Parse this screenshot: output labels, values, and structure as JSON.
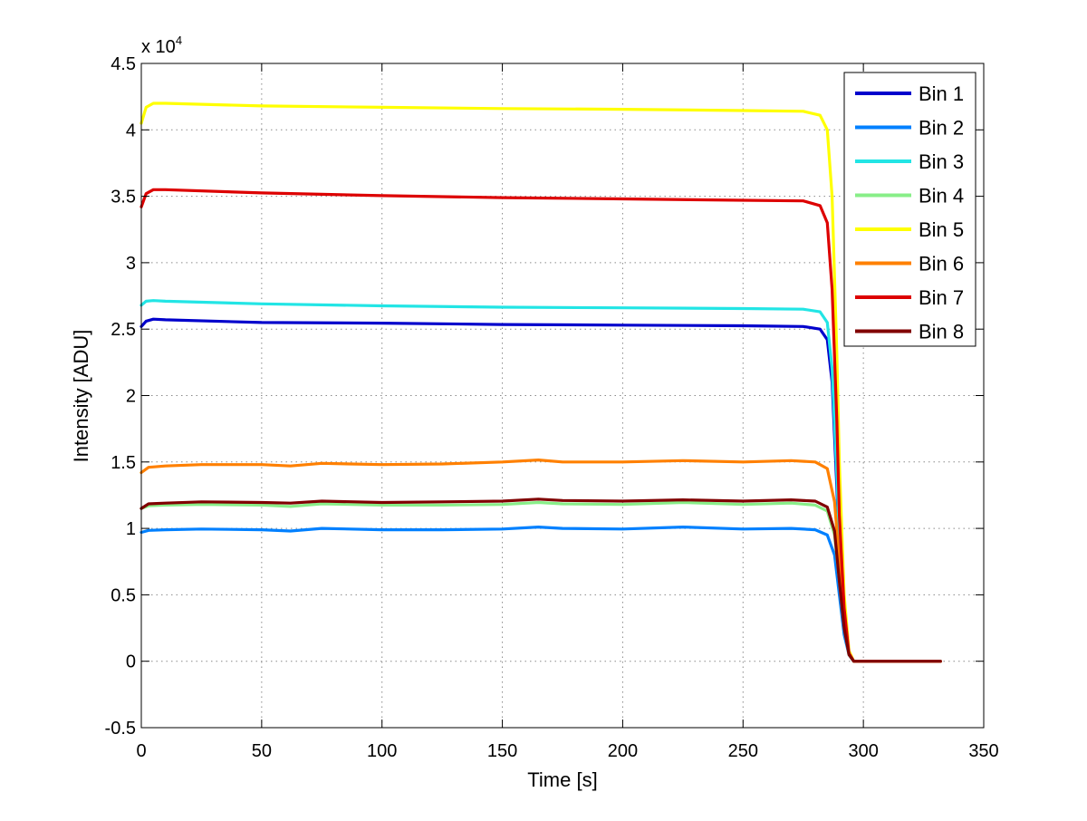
{
  "chart_data": {
    "type": "line",
    "title": "",
    "xlabel": "Time [s]",
    "ylabel": "Intensity [ADU]",
    "y_exponent_label": "x 10",
    "y_exponent_power": "4",
    "xlim": [
      0,
      350
    ],
    "ylim": [
      -0.5,
      4.5
    ],
    "xticks": [
      0,
      50,
      100,
      150,
      200,
      250,
      300,
      350
    ],
    "yticks": [
      -0.5,
      0,
      0.5,
      1,
      1.5,
      2,
      2.5,
      3,
      3.5,
      4,
      4.5
    ],
    "ytick_labels": [
      "-0.5",
      "0",
      "0.5",
      "1",
      "1.5",
      "2",
      "2.5",
      "3",
      "3.5",
      "4",
      "4.5"
    ],
    "grid": true,
    "legend_position": "top-right",
    "series": [
      {
        "name": "Bin 1",
        "color": "#0000cc",
        "x": [
          0,
          2,
          5,
          10,
          50,
          100,
          150,
          200,
          250,
          275,
          282,
          285,
          287,
          289,
          290,
          292,
          294,
          296,
          300,
          332
        ],
        "y": [
          2.52,
          2.56,
          2.575,
          2.57,
          2.55,
          2.545,
          2.535,
          2.53,
          2.525,
          2.52,
          2.5,
          2.42,
          2.1,
          1.3,
          0.8,
          0.3,
          0.05,
          0,
          0,
          0
        ]
      },
      {
        "name": "Bin 2",
        "color": "#0080ff",
        "x": [
          0,
          3,
          10,
          25,
          50,
          62,
          75,
          100,
          125,
          150,
          165,
          175,
          200,
          225,
          250,
          270,
          280,
          285,
          288,
          290,
          292,
          294,
          296,
          300,
          332
        ],
        "y": [
          0.97,
          0.985,
          0.99,
          0.995,
          0.99,
          0.98,
          1.0,
          0.99,
          0.99,
          0.995,
          1.01,
          1.0,
          0.995,
          1.01,
          0.995,
          1.0,
          0.99,
          0.95,
          0.8,
          0.5,
          0.2,
          0.05,
          0,
          0,
          0
        ]
      },
      {
        "name": "Bin 3",
        "color": "#22e5e5",
        "x": [
          0,
          2,
          5,
          10,
          50,
          100,
          150,
          200,
          250,
          275,
          282,
          285,
          287,
          289,
          290,
          292,
          294,
          296,
          300,
          332
        ],
        "y": [
          2.68,
          2.71,
          2.715,
          2.71,
          2.69,
          2.675,
          2.665,
          2.66,
          2.655,
          2.65,
          2.63,
          2.55,
          2.2,
          1.4,
          0.9,
          0.35,
          0.05,
          0,
          0,
          0
        ]
      },
      {
        "name": "Bin 4",
        "color": "#88ee88",
        "x": [
          0,
          3,
          10,
          25,
          50,
          62,
          75,
          100,
          125,
          150,
          165,
          175,
          200,
          225,
          250,
          270,
          280,
          285,
          288,
          290,
          292,
          294,
          296,
          300,
          332
        ],
        "y": [
          1.15,
          1.17,
          1.175,
          1.18,
          1.175,
          1.165,
          1.185,
          1.175,
          1.175,
          1.18,
          1.195,
          1.185,
          1.18,
          1.195,
          1.18,
          1.19,
          1.175,
          1.13,
          0.95,
          0.6,
          0.25,
          0.05,
          0,
          0,
          0
        ]
      },
      {
        "name": "Bin 5",
        "color": "#ffff00",
        "x": [
          0,
          2,
          5,
          10,
          50,
          100,
          150,
          200,
          250,
          275,
          282,
          285,
          287,
          289,
          290,
          292,
          294,
          296,
          300,
          332
        ],
        "y": [
          4.05,
          4.17,
          4.2,
          4.2,
          4.18,
          4.17,
          4.16,
          4.155,
          4.145,
          4.14,
          4.11,
          4.0,
          3.5,
          2.3,
          1.5,
          0.5,
          0.08,
          0,
          0,
          0
        ]
      },
      {
        "name": "Bin 6",
        "color": "#ff8000",
        "x": [
          0,
          3,
          10,
          25,
          50,
          62,
          75,
          100,
          125,
          150,
          165,
          175,
          200,
          225,
          250,
          270,
          280,
          285,
          288,
          290,
          292,
          294,
          296,
          300,
          332
        ],
        "y": [
          1.42,
          1.46,
          1.47,
          1.48,
          1.48,
          1.47,
          1.49,
          1.48,
          1.485,
          1.5,
          1.515,
          1.5,
          1.5,
          1.51,
          1.5,
          1.51,
          1.5,
          1.45,
          1.2,
          0.75,
          0.3,
          0.06,
          0,
          0,
          0
        ]
      },
      {
        "name": "Bin 7",
        "color": "#dd0000",
        "x": [
          0,
          2,
          5,
          10,
          50,
          100,
          150,
          200,
          250,
          275,
          282,
          285,
          287,
          289,
          290,
          292,
          294,
          296,
          300,
          332
        ],
        "y": [
          3.42,
          3.52,
          3.55,
          3.55,
          3.525,
          3.505,
          3.49,
          3.48,
          3.47,
          3.465,
          3.43,
          3.3,
          2.8,
          1.8,
          1.1,
          0.4,
          0.06,
          0,
          0,
          0
        ]
      },
      {
        "name": "Bin 8",
        "color": "#800000",
        "x": [
          0,
          3,
          10,
          25,
          50,
          62,
          75,
          100,
          125,
          150,
          165,
          175,
          200,
          225,
          250,
          270,
          280,
          285,
          288,
          290,
          292,
          294,
          296,
          300,
          332
        ],
        "y": [
          1.15,
          1.185,
          1.19,
          1.2,
          1.195,
          1.19,
          1.205,
          1.195,
          1.2,
          1.205,
          1.22,
          1.21,
          1.205,
          1.215,
          1.205,
          1.215,
          1.205,
          1.16,
          0.98,
          0.6,
          0.25,
          0.05,
          0,
          0,
          0
        ]
      }
    ]
  }
}
